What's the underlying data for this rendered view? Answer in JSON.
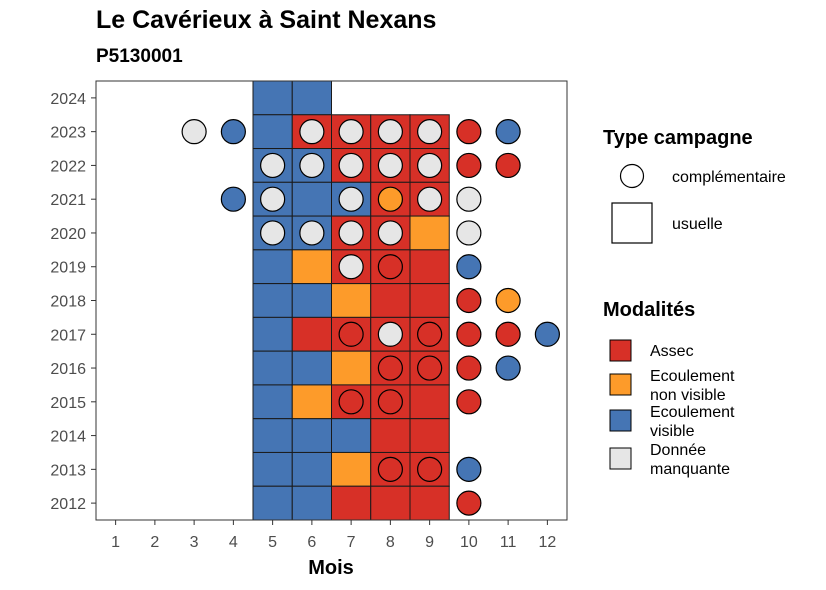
{
  "chart_data": {
    "type": "heatmap",
    "title": "Le Cavérieux à Saint Nexans",
    "subtitle": "P5130001",
    "xlabel": "Mois",
    "ylabel": "",
    "x_ticks": [
      1,
      2,
      3,
      4,
      5,
      6,
      7,
      8,
      9,
      10,
      11,
      12
    ],
    "y_ticks": [
      2012,
      2013,
      2014,
      2015,
      2016,
      2017,
      2018,
      2019,
      2020,
      2021,
      2022,
      2023,
      2024
    ],
    "xlim": [
      0.5,
      12.5
    ],
    "ylim": [
      2011.5,
      2024.5
    ],
    "colors": {
      "Assec": "#d73027",
      "Ecoulement non visible": "#fd9b2a",
      "Ecoulement visible": "#4575b4",
      "Donnée manquante": "#e6e6e6"
    },
    "legend_type": {
      "title": "Type campagne",
      "items": [
        {
          "shape": "circle",
          "label": "complémentaire"
        },
        {
          "shape": "square",
          "label": "usuelle"
        }
      ]
    },
    "legend_modalites": {
      "title": "Modalités",
      "items": [
        {
          "key": "Assec",
          "lines": [
            "Assec"
          ]
        },
        {
          "key": "Ecoulement non visible",
          "lines": [
            "Ecoulement",
            "non visible"
          ]
        },
        {
          "key": "Ecoulement visible",
          "lines": [
            "Ecoulement",
            "visible"
          ]
        },
        {
          "key": "Donnée manquante",
          "lines": [
            "Donnée",
            "manquante"
          ]
        }
      ]
    },
    "usuelle": [
      {
        "year": 2024,
        "values": {
          "5": "Ecoulement visible",
          "6": "Ecoulement visible"
        }
      },
      {
        "year": 2023,
        "values": {
          "5": "Ecoulement visible",
          "6": "Assec",
          "7": "Assec",
          "8": "Assec",
          "9": "Assec"
        }
      },
      {
        "year": 2022,
        "values": {
          "5": "Ecoulement visible",
          "6": "Ecoulement visible",
          "7": "Assec",
          "8": "Assec",
          "9": "Assec"
        }
      },
      {
        "year": 2021,
        "values": {
          "5": "Ecoulement visible",
          "6": "Ecoulement visible",
          "7": "Ecoulement visible",
          "8": "Assec",
          "9": "Assec"
        }
      },
      {
        "year": 2020,
        "values": {
          "5": "Ecoulement visible",
          "6": "Ecoulement visible",
          "7": "Assec",
          "8": "Assec",
          "9": "Ecoulement non visible"
        }
      },
      {
        "year": 2019,
        "values": {
          "5": "Ecoulement visible",
          "6": "Ecoulement non visible",
          "7": "Assec",
          "8": "Assec",
          "9": "Assec"
        }
      },
      {
        "year": 2018,
        "values": {
          "5": "Ecoulement visible",
          "6": "Ecoulement visible",
          "7": "Ecoulement non visible",
          "8": "Assec",
          "9": "Assec"
        }
      },
      {
        "year": 2017,
        "values": {
          "5": "Ecoulement visible",
          "6": "Assec",
          "7": "Assec",
          "8": "Assec",
          "9": "Assec"
        }
      },
      {
        "year": 2016,
        "values": {
          "5": "Ecoulement visible",
          "6": "Ecoulement visible",
          "7": "Ecoulement non visible",
          "8": "Assec",
          "9": "Assec"
        }
      },
      {
        "year": 2015,
        "values": {
          "5": "Ecoulement visible",
          "6": "Ecoulement non visible",
          "7": "Assec",
          "8": "Assec",
          "9": "Assec"
        }
      },
      {
        "year": 2014,
        "values": {
          "5": "Ecoulement visible",
          "6": "Ecoulement visible",
          "7": "Ecoulement visible",
          "8": "Assec",
          "9": "Assec"
        }
      },
      {
        "year": 2013,
        "values": {
          "5": "Ecoulement visible",
          "6": "Ecoulement visible",
          "7": "Ecoulement non visible",
          "8": "Assec",
          "9": "Assec"
        }
      },
      {
        "year": 2012,
        "values": {
          "5": "Ecoulement visible",
          "6": "Ecoulement visible",
          "7": "Assec",
          "8": "Assec",
          "9": "Assec"
        }
      }
    ],
    "complementaire": [
      {
        "year": 2023,
        "values": {
          "3": "Donnée manquante",
          "4": "Ecoulement visible",
          "6": "Donnée manquante",
          "7": "Donnée manquante",
          "8": "Donnée manquante",
          "9": "Donnée manquante",
          "10": "Assec",
          "11": "Ecoulement visible"
        }
      },
      {
        "year": 2022,
        "values": {
          "5": "Donnée manquante",
          "6": "Donnée manquante",
          "7": "Donnée manquante",
          "8": "Donnée manquante",
          "9": "Donnée manquante",
          "10": "Assec",
          "11": "Assec"
        }
      },
      {
        "year": 2021,
        "values": {
          "4": "Ecoulement visible",
          "5": "Donnée manquante",
          "7": "Donnée manquante",
          "8": "Ecoulement non visible",
          "9": "Donnée manquante",
          "10": "Donnée manquante"
        }
      },
      {
        "year": 2020,
        "values": {
          "5": "Donnée manquante",
          "6": "Donnée manquante",
          "7": "Donnée manquante",
          "8": "Donnée manquante",
          "10": "Donnée manquante"
        }
      },
      {
        "year": 2019,
        "values": {
          "7": "Donnée manquante",
          "8": "Assec",
          "10": "Ecoulement visible"
        }
      },
      {
        "year": 2018,
        "values": {
          "10": "Assec",
          "11": "Ecoulement non visible"
        }
      },
      {
        "year": 2017,
        "values": {
          "7": "Assec",
          "8": "Donnée manquante",
          "9": "Assec",
          "10": "Assec",
          "11": "Assec",
          "12": "Ecoulement visible"
        }
      },
      {
        "year": 2016,
        "values": {
          "8": "Assec",
          "9": "Assec",
          "10": "Assec",
          "11": "Ecoulement visible"
        }
      },
      {
        "year": 2015,
        "values": {
          "7": "Assec",
          "8": "Assec",
          "10": "Assec"
        }
      },
      {
        "year": 2013,
        "values": {
          "8": "Assec",
          "9": "Assec",
          "10": "Ecoulement visible"
        }
      },
      {
        "year": 2012,
        "values": {
          "10": "Assec"
        }
      }
    ]
  }
}
